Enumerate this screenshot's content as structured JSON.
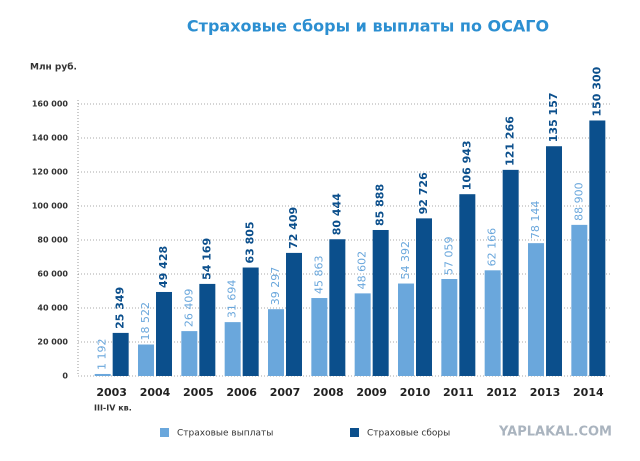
{
  "chart_data": {
    "type": "bar",
    "title": "Страховые сборы и выплаты по ОСАГО",
    "y_label": "Млн руб.",
    "x_note": "III-IV кв.",
    "watermark": "YAPLAKAL.COM",
    "categories": [
      "2003",
      "2004",
      "2005",
      "2006",
      "2007",
      "2008",
      "2009",
      "2010",
      "2011",
      "2012",
      "2013",
      "2014"
    ],
    "series": [
      {
        "name": "Страховые выплаты",
        "color": "#6aa7dc",
        "values": [
          1192,
          18522,
          26409,
          31694,
          39297,
          45863,
          48602,
          54392,
          57059,
          62166,
          78144,
          88900
        ],
        "value_labels": [
          "1 192",
          "18 522",
          "26 409",
          "31 694",
          "39 297",
          "45 863",
          "48 602",
          "54 392",
          "57 059",
          "62 166",
          "78 144",
          "88 900"
        ]
      },
      {
        "name": "Страховые сборы",
        "color": "#0b4f8c",
        "values": [
          25349,
          49428,
          54169,
          63805,
          72409,
          80444,
          85888,
          92726,
          106943,
          121266,
          135157,
          150300
        ],
        "value_labels": [
          "25 349",
          "49 428",
          "54 169",
          "63 805",
          "72 409",
          "80 444",
          "85 888",
          "92 726",
          "106 943",
          "121 266",
          "135 157",
          "150 300"
        ]
      }
    ],
    "ylim": [
      0,
      160000
    ],
    "yticks": [
      0,
      {
        "value": 20000,
        "label": "20 000"
      },
      {
        "value": 40000,
        "label": "40 000"
      },
      {
        "value": 60000,
        "label": "60 000"
      },
      {
        "value": 80000,
        "label": "80 000"
      },
      {
        "value": 100000,
        "label": "100 000"
      },
      {
        "value": 120000,
        "label": "120 000"
      },
      {
        "value": 140000,
        "label": "140 000"
      },
      {
        "value": 160000,
        "label": "160 000"
      }
    ],
    "grid": true
  }
}
